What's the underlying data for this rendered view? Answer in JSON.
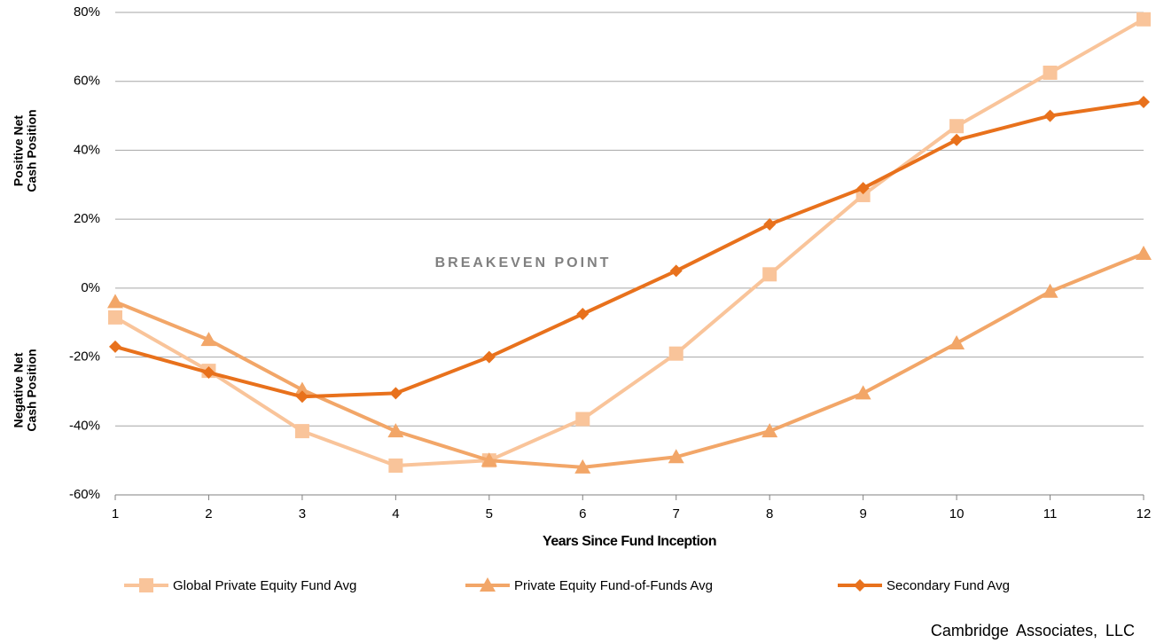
{
  "chart_data": {
    "type": "line",
    "x_label": "Years Since Fund Inception",
    "x": [
      1,
      2,
      3,
      4,
      5,
      6,
      7,
      8,
      9,
      10,
      11,
      12
    ],
    "xlim": [
      1,
      12
    ],
    "xticks": [
      1,
      2,
      3,
      4,
      5,
      6,
      7,
      8,
      9,
      10,
      11,
      12
    ],
    "ylim": [
      -60,
      80
    ],
    "yticks": [
      {
        "value": -60,
        "label": "-60%"
      },
      {
        "value": -40,
        "label": "-40%"
      },
      {
        "value": -20,
        "label": "-20%"
      },
      {
        "value": 0,
        "label": "0%"
      },
      {
        "value": 20,
        "label": "20%"
      },
      {
        "value": 40,
        "label": "40%"
      },
      {
        "value": 60,
        "label": "60%"
      },
      {
        "value": 80,
        "label": "80%"
      }
    ],
    "grid": true,
    "legend_position": "bottom",
    "series": [
      {
        "name": "Global Private Equity Fund Avg",
        "color": "#f9c49a",
        "marker": "square",
        "values": [
          -8.5,
          -24,
          -41.5,
          -51.5,
          -50,
          -38,
          -19,
          4,
          27,
          47,
          62.5,
          78
        ]
      },
      {
        "name": "Private Equity Fund-of-Funds Avg",
        "color": "#f2a668",
        "marker": "triangle",
        "values": [
          -4,
          -15,
          -29.5,
          -41.5,
          -50,
          -52,
          -49,
          -41.5,
          -30.5,
          -16,
          -1,
          10
        ]
      },
      {
        "name": "Secondary Fund Avg",
        "color": "#e8711c",
        "marker": "diamond",
        "values": [
          -17,
          -24.5,
          -31.5,
          -30.5,
          -20,
          -7.5,
          5,
          18.5,
          29,
          43,
          50,
          54
        ]
      }
    ],
    "annotations": {
      "breakeven": "BREAKEVEN POINT",
      "positive": [
        "Positive Net",
        "Cash Position"
      ],
      "negative": [
        "Negative Net",
        "Cash Position"
      ]
    },
    "source": "Cambridge Associates, LLC"
  }
}
